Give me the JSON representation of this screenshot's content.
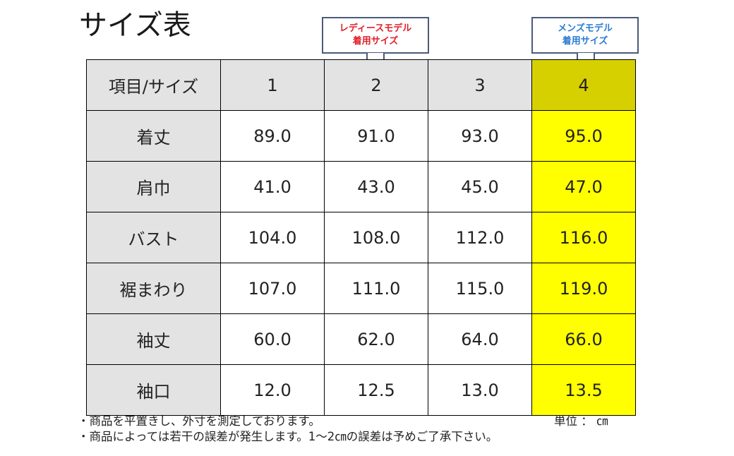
{
  "title": "サイズ表",
  "callouts": {
    "ladies": {
      "line1": "レディースモデル",
      "line2": "着用サイズ",
      "color": "#e0202a"
    },
    "mens": {
      "line1": "メンズモデル",
      "line2": "着用サイズ",
      "color": "#2a7bd2"
    }
  },
  "table": {
    "header": [
      "項目/サイズ",
      "1",
      "2",
      "3",
      "4"
    ],
    "rows": [
      {
        "label": "着丈",
        "values": [
          "89.0",
          "91.0",
          "93.0",
          "95.0"
        ]
      },
      {
        "label": "肩巾",
        "values": [
          "41.0",
          "43.0",
          "45.0",
          "47.0"
        ]
      },
      {
        "label": "バスト",
        "values": [
          "104.0",
          "108.0",
          "112.0",
          "116.0"
        ]
      },
      {
        "label": "裾まわり",
        "values": [
          "107.0",
          "111.0",
          "115.0",
          "119.0"
        ]
      },
      {
        "label": "袖丈",
        "values": [
          "60.0",
          "62.0",
          "64.0",
          "66.0"
        ]
      },
      {
        "label": "袖口",
        "values": [
          "12.0",
          "12.5",
          "13.0",
          "13.5"
        ]
      }
    ],
    "highlight_color": "#ffff00",
    "header_highlight_color": "#d7d000",
    "label_bg": "#e3e3e3"
  },
  "notes": [
    "・商品を平置きし、外寸を測定しております。",
    "・商品によっては若干の誤差が発生します。1～2㎝の誤差は予めご了承下さい。"
  ],
  "unit": "単位 ： ㎝"
}
